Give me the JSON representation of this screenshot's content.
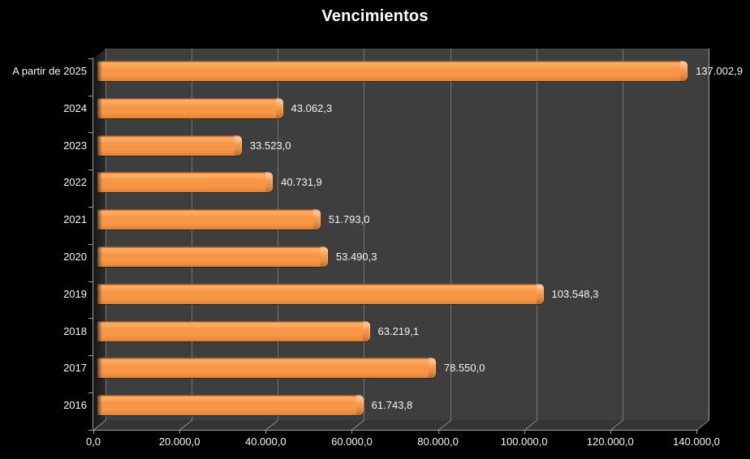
{
  "chart_data": {
    "type": "bar",
    "orientation": "horizontal",
    "style": "3d",
    "title": "Vencimientos",
    "categories": [
      "A partir de 2025",
      "2024",
      "2023",
      "2022",
      "2021",
      "2020",
      "2019",
      "2018",
      "2017",
      "2016"
    ],
    "values": [
      137002.9,
      43062.3,
      33523.0,
      40731.9,
      51793.0,
      53490.3,
      103548.3,
      63219.1,
      78550.0,
      61743.8
    ],
    "value_labels": [
      "137.002,9",
      "43.062,3",
      "33.523,0",
      "40.731,9",
      "51.793,0",
      "53.490,3",
      "103.548,3",
      "63.219,1",
      "78.550,0",
      "61.743,8"
    ],
    "x_tick_labels": [
      "0,0",
      "20.000,0",
      "40.000,0",
      "60.000,0",
      "80.000,0",
      "100.000,0",
      "120.000,0",
      "140.000,0"
    ],
    "xlim": [
      0,
      140000
    ],
    "grid": "vertical",
    "legend": "none",
    "colors": {
      "background": "#000000",
      "bar": "#F79646",
      "wall": "#3E3E3E",
      "gridline": "#757575",
      "axis": "#A0A0A0",
      "text": "#FFFFFF"
    }
  }
}
